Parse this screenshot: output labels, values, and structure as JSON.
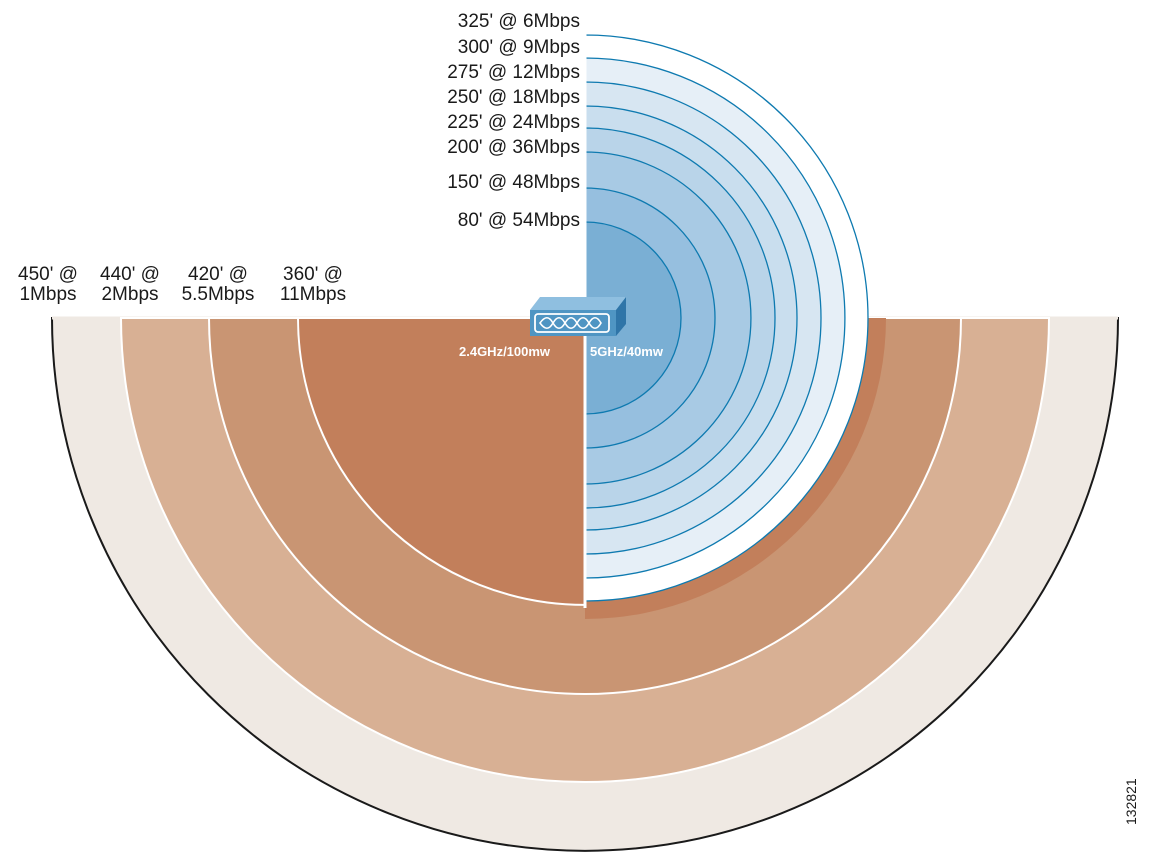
{
  "left_band": {
    "label": "2.4GHz/100mw",
    "rings": [
      {
        "distance": "450' @",
        "rate": "1Mbps",
        "color": "#efe9e3"
      },
      {
        "distance": "440' @",
        "rate": "2Mbps",
        "color": "#d8b094"
      },
      {
        "distance": "420' @",
        "rate": "5.5Mbps",
        "color": "#c99573"
      },
      {
        "distance": "360' @",
        "rate": "11Mbps",
        "color": "#c27f5b"
      }
    ]
  },
  "right_band": {
    "label": "5GHz/40mw",
    "rings": [
      {
        "text": "325' @ 6Mbps"
      },
      {
        "text": "300' @ 9Mbps"
      },
      {
        "text": "275' @ 12Mbps"
      },
      {
        "text": "250' @ 18Mbps"
      },
      {
        "text": "225' @ 24Mbps"
      },
      {
        "text": "200' @ 36Mbps"
      },
      {
        "text": "150' @ 48Mbps"
      },
      {
        "text": "80' @ 54Mbps"
      }
    ],
    "fill_colors": [
      "#ffffff",
      "#e6eff7",
      "#d7e6f2",
      "#c9deee",
      "#b9d4e9",
      "#a8cae4",
      "#96bfdf",
      "#7aafd4"
    ],
    "stroke_color": "#0e7ab0"
  },
  "access_point": {
    "icon": "access-point-icon",
    "color": "#4f95c3"
  },
  "figure_number": "132821"
}
